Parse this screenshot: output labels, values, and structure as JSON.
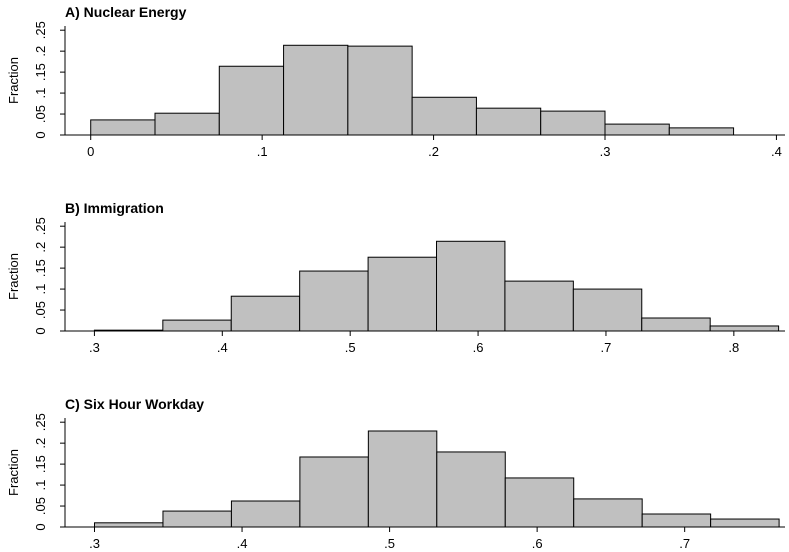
{
  "chart_data": [
    {
      "type": "histogram",
      "title": "A) Nuclear Energy",
      "y_label": "Fraction",
      "color": "#c0c0c0",
      "bins": [
        0,
        0.0375,
        0.075,
        0.1125,
        0.15,
        0.1875,
        0.225,
        0.2625,
        0.3,
        0.3375,
        0.375
      ],
      "values": [
        0.036,
        0.052,
        0.164,
        0.214,
        0.212,
        0.09,
        0.064,
        0.057,
        0.026,
        0.017
      ],
      "xlim": [
        -0.015,
        0.405
      ],
      "xticks": [
        0,
        {
          "value": 0.1,
          "label": ".1"
        },
        {
          "value": 0.2,
          "label": ".2"
        },
        {
          "value": 0.3,
          "label": ".3"
        },
        {
          "value": 0.4,
          "label": ".4"
        }
      ],
      "ylim": [
        0,
        0.26
      ],
      "yticks": [
        0,
        {
          "value": 0.05,
          "label": ".05"
        },
        {
          "value": 0.1,
          "label": ".1"
        },
        {
          "value": 0.15,
          "label": ".15"
        },
        {
          "value": 0.2,
          "label": ".2"
        },
        {
          "value": 0.25,
          "label": ".25"
        }
      ]
    },
    {
      "type": "histogram",
      "title": "B) Immigration",
      "y_label": "Fraction",
      "color": "#c0c0c0",
      "bins": [
        0.3,
        0.3535,
        0.407,
        0.4605,
        0.514,
        0.5675,
        0.621,
        0.6745,
        0.728,
        0.7815,
        0.835
      ],
      "values": [
        0.002,
        0.026,
        0.083,
        0.143,
        0.176,
        0.214,
        0.119,
        0.1,
        0.031,
        0.012
      ],
      "xlim": [
        0.277,
        0.84
      ],
      "xticks": [
        {
          "value": 0.3,
          "label": ".3"
        },
        {
          "value": 0.4,
          "label": ".4"
        },
        {
          "value": 0.5,
          "label": ".5"
        },
        {
          "value": 0.6,
          "label": ".6"
        },
        {
          "value": 0.7,
          "label": ".7"
        },
        {
          "value": 0.8,
          "label": ".8"
        }
      ],
      "ylim": [
        0,
        0.26
      ],
      "yticks": [
        0,
        {
          "value": 0.05,
          "label": ".05"
        },
        {
          "value": 0.1,
          "label": ".1"
        },
        {
          "value": 0.15,
          "label": ".15"
        },
        {
          "value": 0.2,
          "label": ".2"
        },
        {
          "value": 0.25,
          "label": ".25"
        }
      ]
    },
    {
      "type": "histogram",
      "title": "C) Six Hour Workday",
      "y_label": "Fraction",
      "color": "#c0c0c0",
      "bins": [
        0.3,
        0.3464,
        0.3928,
        0.4392,
        0.4856,
        0.532,
        0.5784,
        0.6248,
        0.6712,
        0.7176,
        0.764
      ],
      "values": [
        0.01,
        0.038,
        0.062,
        0.167,
        0.229,
        0.179,
        0.117,
        0.067,
        0.031,
        0.019
      ],
      "xlim": [
        0.28,
        0.768
      ],
      "xticks": [
        {
          "value": 0.3,
          "label": ".3"
        },
        {
          "value": 0.4,
          "label": ".4"
        },
        {
          "value": 0.5,
          "label": ".5"
        },
        {
          "value": 0.6,
          "label": ".6"
        },
        {
          "value": 0.7,
          "label": ".7"
        }
      ],
      "ylim": [
        0,
        0.26
      ],
      "yticks": [
        0,
        {
          "value": 0.05,
          "label": ".05"
        },
        {
          "value": 0.1,
          "label": ".1"
        },
        {
          "value": 0.15,
          "label": ".15"
        },
        {
          "value": 0.2,
          "label": ".2"
        },
        {
          "value": 0.25,
          "label": ".25"
        }
      ]
    }
  ]
}
